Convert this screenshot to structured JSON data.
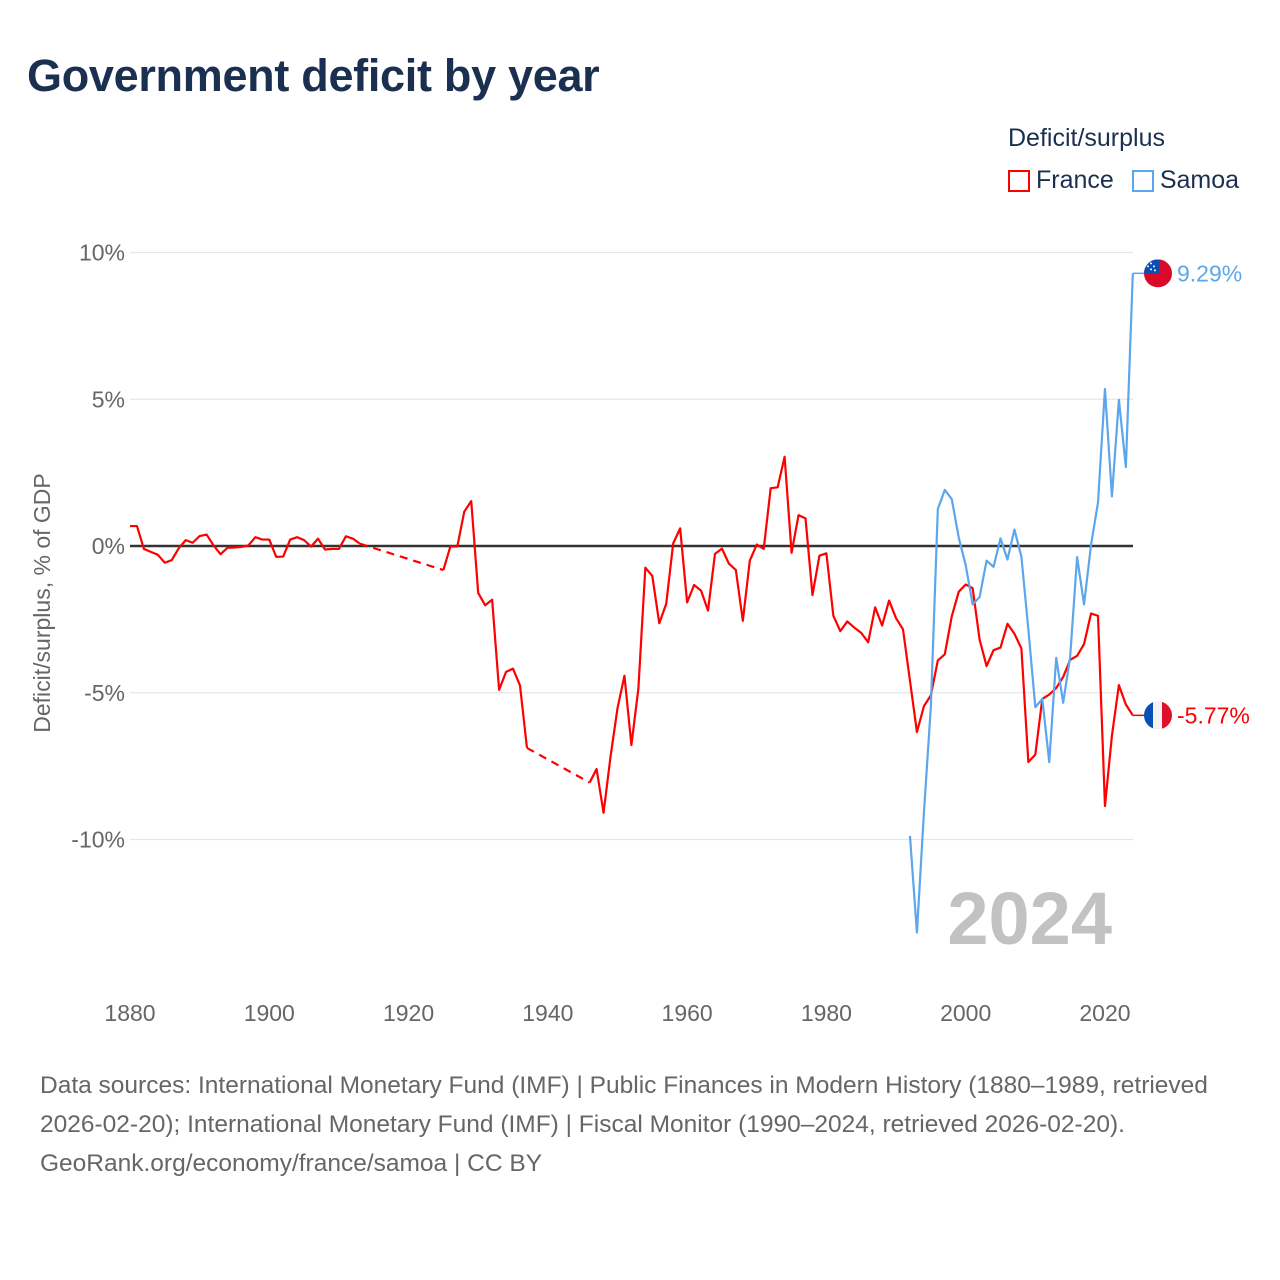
{
  "chart_data": {
    "type": "line",
    "title": "Government deficit by year",
    "ylabel": "Deficit/surplus, % of GDP",
    "xlabel": "",
    "xlim": [
      1880,
      2024
    ],
    "ylim": [
      -14,
      11
    ],
    "x_ticks": [
      1880,
      1900,
      1920,
      1940,
      1960,
      1980,
      2000,
      2020
    ],
    "x_tick_labels": [
      "1880",
      "1900",
      "1920",
      "1940",
      "1960",
      "1980",
      "2000",
      "2020"
    ],
    "y_ticks": [
      10,
      5,
      0,
      -5,
      -10
    ],
    "y_tick_labels": [
      "10%",
      "5%",
      "0%",
      "-5%",
      "-10%"
    ],
    "grid": true,
    "legend_title": "Deficit/surplus",
    "legend_position": "top-right",
    "current_year_label": "2024",
    "series": [
      {
        "name": "France",
        "color": "#ff0000",
        "flag": "france-flag",
        "end_label": "-5.77%",
        "segments": [
          {
            "start_year": 1880,
            "values": [
              0.68,
              0.68,
              -0.1,
              -0.2,
              -0.3,
              -0.57,
              -0.48,
              -0.08,
              0.2,
              0.11,
              0.34,
              0.39,
              0.02,
              -0.28,
              -0.06,
              -0.05,
              -0.03,
              0.02,
              0.3,
              0.22,
              0.22,
              -0.37,
              -0.36,
              0.22,
              0.3,
              0.2,
              -0.02,
              0.25,
              -0.12,
              -0.1,
              -0.1,
              0.33,
              0.25,
              0.08
            ]
          },
          {
            "start_year": 1925,
            "values": [
              -0.82,
              -0.02,
              -0.02,
              1.17,
              1.53,
              -1.6,
              -2.02,
              -1.83,
              -4.9,
              -4.29,
              -4.18,
              -4.75,
              -6.88
            ]
          },
          {
            "start_year": 1946,
            "values": [
              -8.06,
              -7.6,
              -9.09,
              -7.18,
              -5.53,
              -4.42,
              -6.78,
              -4.86,
              -0.74,
              -1.02,
              -2.63,
              -1.97,
              0.09,
              0.6,
              -1.92,
              -1.33,
              -1.52,
              -2.2,
              -0.27,
              -0.09,
              -0.6,
              -0.82,
              -2.55,
              -0.5,
              0.05,
              -0.1,
              1.97,
              2.0,
              3.04,
              -0.23,
              1.05,
              0.94,
              -1.67,
              -0.33,
              -0.25,
              -2.38,
              -2.9,
              -2.57,
              -2.78,
              -2.96,
              -3.28,
              -2.09,
              -2.71,
              -1.86,
              -2.46,
              -2.84,
              -4.59,
              -6.34,
              -5.46,
              -5.09,
              -3.9,
              -3.69,
              -2.4,
              -1.56,
              -1.31,
              -1.44,
              -3.19,
              -4.09,
              -3.55,
              -3.46,
              -2.65,
              -2.99,
              -3.49,
              -7.36,
              -7.11,
              -5.21,
              -5.06,
              -4.84,
              -4.46,
              -3.88,
              -3.74,
              -3.34,
              -2.3,
              -2.38,
              -8.86,
              -6.46,
              -4.74,
              -5.4,
              -5.77
            ]
          }
        ]
      },
      {
        "name": "Samoa",
        "color": "#5ba6ec",
        "flag": "samoa-flag",
        "end_label": "9.29%",
        "segments": [
          {
            "start_year": 1992,
            "values": [
              -9.88,
              -13.17,
              -9.1,
              -5.47,
              1.26,
              1.91,
              1.6,
              0.29,
              -0.65,
              -1.99,
              -1.74,
              -0.5,
              -0.71,
              0.26,
              -0.46,
              0.56,
              -0.36,
              -2.84,
              -5.49,
              -5.21,
              -7.36,
              -3.81,
              -5.34,
              -3.78,
              -0.38,
              -1.99,
              0.04,
              1.48,
              5.35,
              1.69,
              4.98,
              2.69,
              9.29
            ]
          }
        ]
      }
    ]
  },
  "footer": {
    "sources": "Data sources: International Monetary Fund (IMF) | Public Finances in Modern History (1880–1989, retrieved 2026-02-20); International Monetary Fund (IMF) | Fiscal Monitor (1990–2024, retrieved 2026-02-20).",
    "credit": "GeoRank.org/economy/france/samoa | CC BY"
  }
}
